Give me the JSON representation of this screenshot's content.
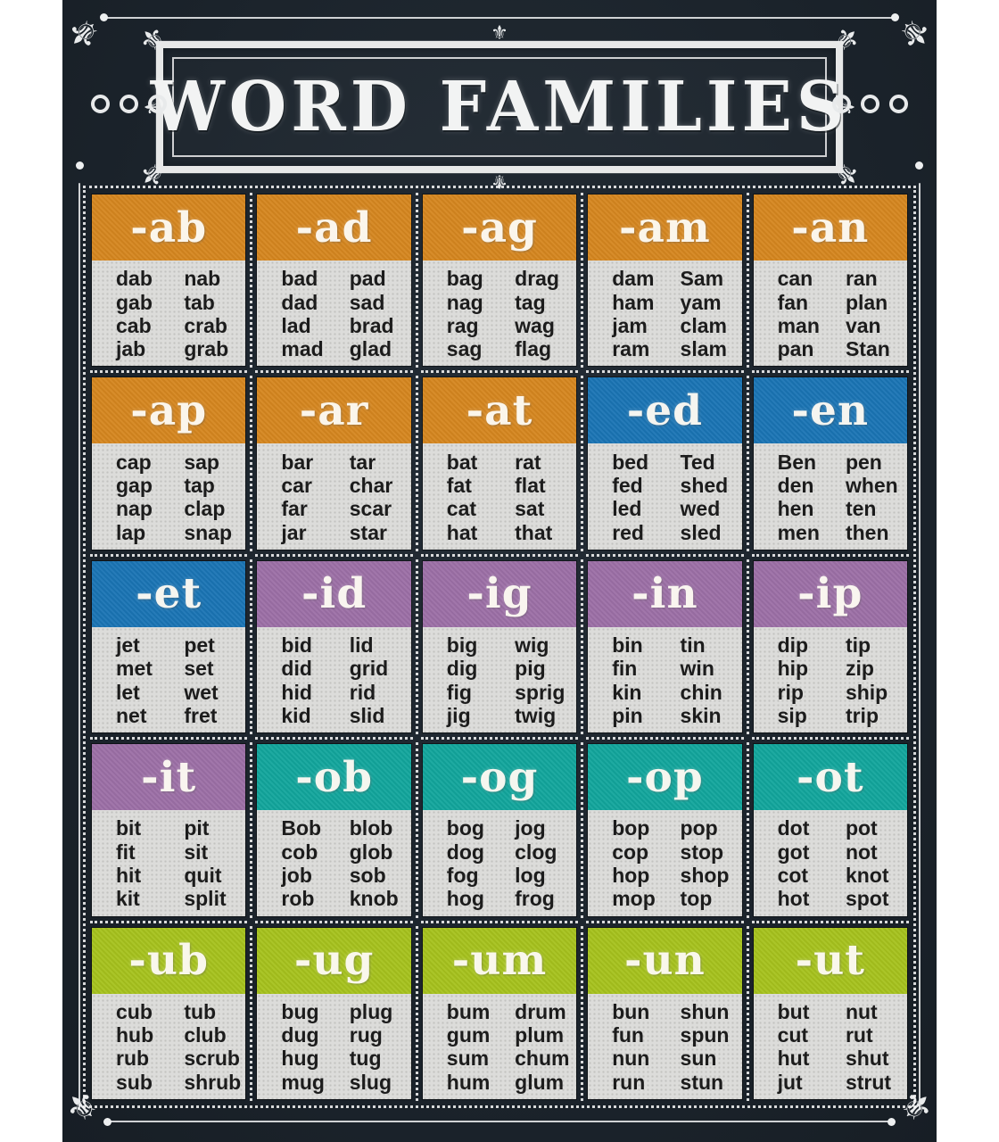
{
  "title": "WORD FAMILIES",
  "icons": {
    "fleur_de_lis": "⚜",
    "ring": "circle-outline"
  },
  "colors": {
    "orange": "#d5861f",
    "blue": "#1a74b4",
    "purple": "#9c6fa6",
    "teal": "#12a59c",
    "green": "#a6c21d",
    "card_body": "#dcdcda",
    "board_background": "#1c242c",
    "chalk": "#e9ebec",
    "word_text": "#1c1c1c"
  },
  "cards": [
    {
      "family": "-ab",
      "color": "orange",
      "col1": [
        "dab",
        "gab",
        "cab",
        "jab"
      ],
      "col2": [
        "nab",
        "tab",
        "crab",
        "grab"
      ]
    },
    {
      "family": "-ad",
      "color": "orange",
      "col1": [
        "bad",
        "dad",
        "lad",
        "mad"
      ],
      "col2": [
        "pad",
        "sad",
        "brad",
        "glad"
      ]
    },
    {
      "family": "-ag",
      "color": "orange",
      "col1": [
        "bag",
        "nag",
        "rag",
        "sag"
      ],
      "col2": [
        "drag",
        "tag",
        "wag",
        "flag"
      ]
    },
    {
      "family": "-am",
      "color": "orange",
      "col1": [
        "dam",
        "ham",
        "jam",
        "ram"
      ],
      "col2": [
        "Sam",
        "yam",
        "clam",
        "slam"
      ]
    },
    {
      "family": "-an",
      "color": "orange",
      "col1": [
        "can",
        "fan",
        "man",
        "pan"
      ],
      "col2": [
        "ran",
        "plan",
        "van",
        "Stan"
      ]
    },
    {
      "family": "-ap",
      "color": "orange",
      "col1": [
        "cap",
        "gap",
        "nap",
        "lap"
      ],
      "col2": [
        "sap",
        "tap",
        "clap",
        "snap"
      ]
    },
    {
      "family": "-ar",
      "color": "orange",
      "col1": [
        "bar",
        "car",
        "far",
        "jar"
      ],
      "col2": [
        "tar",
        "char",
        "scar",
        "star"
      ]
    },
    {
      "family": "-at",
      "color": "orange",
      "col1": [
        "bat",
        "fat",
        "cat",
        "hat"
      ],
      "col2": [
        "rat",
        "flat",
        "sat",
        "that"
      ]
    },
    {
      "family": "-ed",
      "color": "blue",
      "col1": [
        "bed",
        "fed",
        "led",
        "red"
      ],
      "col2": [
        "Ted",
        "shed",
        "wed",
        "sled"
      ]
    },
    {
      "family": "-en",
      "color": "blue",
      "col1": [
        "Ben",
        "den",
        "hen",
        "men"
      ],
      "col2": [
        "pen",
        "when",
        "ten",
        "then"
      ]
    },
    {
      "family": "-et",
      "color": "blue",
      "col1": [
        "jet",
        "met",
        "let",
        "net"
      ],
      "col2": [
        "pet",
        "set",
        "wet",
        "fret"
      ]
    },
    {
      "family": "-id",
      "color": "purple",
      "col1": [
        "bid",
        "did",
        "hid",
        "kid"
      ],
      "col2": [
        "lid",
        "grid",
        "rid",
        "slid"
      ]
    },
    {
      "family": "-ig",
      "color": "purple",
      "col1": [
        "big",
        "dig",
        "fig",
        "jig"
      ],
      "col2": [
        "wig",
        "pig",
        "sprig",
        "twig"
      ]
    },
    {
      "family": "-in",
      "color": "purple",
      "col1": [
        "bin",
        "fin",
        "kin",
        "pin"
      ],
      "col2": [
        "tin",
        "win",
        "chin",
        "skin"
      ]
    },
    {
      "family": "-ip",
      "color": "purple",
      "col1": [
        "dip",
        "hip",
        "rip",
        "sip"
      ],
      "col2": [
        "tip",
        "zip",
        "ship",
        "trip"
      ]
    },
    {
      "family": "-it",
      "color": "purple",
      "col1": [
        "bit",
        "fit",
        "hit",
        "kit"
      ],
      "col2": [
        "pit",
        "sit",
        "quit",
        "split"
      ]
    },
    {
      "family": "-ob",
      "color": "teal",
      "col1": [
        "Bob",
        "cob",
        "job",
        "rob"
      ],
      "col2": [
        "blob",
        "glob",
        "sob",
        "knob"
      ]
    },
    {
      "family": "-og",
      "color": "teal",
      "col1": [
        "bog",
        "dog",
        "fog",
        "hog"
      ],
      "col2": [
        "jog",
        "clog",
        "log",
        "frog"
      ]
    },
    {
      "family": "-op",
      "color": "teal",
      "col1": [
        "bop",
        "cop",
        "hop",
        "mop"
      ],
      "col2": [
        "pop",
        "stop",
        "shop",
        "top"
      ]
    },
    {
      "family": "-ot",
      "color": "teal",
      "col1": [
        "dot",
        "got",
        "cot",
        "hot"
      ],
      "col2": [
        "pot",
        "not",
        "knot",
        "spot"
      ]
    },
    {
      "family": "-ub",
      "color": "green",
      "col1": [
        "cub",
        "hub",
        "rub",
        "sub"
      ],
      "col2": [
        "tub",
        "club",
        "scrub",
        "shrub"
      ]
    },
    {
      "family": "-ug",
      "color": "green",
      "col1": [
        "bug",
        "dug",
        "hug",
        "mug"
      ],
      "col2": [
        "plug",
        "rug",
        "tug",
        "slug"
      ]
    },
    {
      "family": "-um",
      "color": "green",
      "col1": [
        "bum",
        "gum",
        "sum",
        "hum"
      ],
      "col2": [
        "drum",
        "plum",
        "chum",
        "glum"
      ]
    },
    {
      "family": "-un",
      "color": "green",
      "col1": [
        "bun",
        "fun",
        "nun",
        "run"
      ],
      "col2": [
        "shun",
        "spun",
        "sun",
        "stun"
      ]
    },
    {
      "family": "-ut",
      "color": "green",
      "col1": [
        "but",
        "cut",
        "hut",
        "jut"
      ],
      "col2": [
        "nut",
        "rut",
        "shut",
        "strut"
      ]
    }
  ]
}
